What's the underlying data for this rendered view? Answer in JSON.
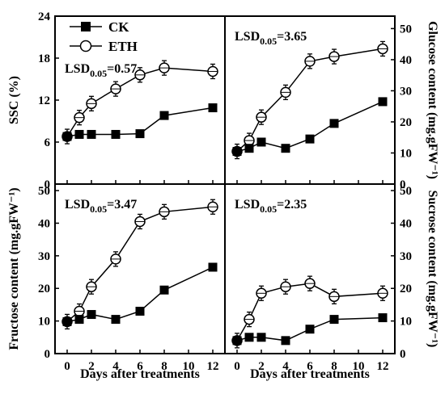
{
  "legend": [
    {
      "name": "CK",
      "marker": "filled-square"
    },
    {
      "name": "ETH",
      "marker": "open-circle"
    }
  ],
  "x_title": "Days after treatments",
  "x_ticks": [
    0,
    2,
    4,
    6,
    8,
    10,
    12
  ],
  "chart_data": [
    {
      "type": "line",
      "panel": "top-left",
      "ylabel": "SSC (%)",
      "axis_side": "left",
      "ylim": [
        0,
        24
      ],
      "yticks": [
        0,
        6,
        12,
        18,
        24
      ],
      "xlim": [
        -1,
        13
      ],
      "annotation": {
        "base": "LSD",
        "sub": "0.05",
        "value": "=0.57"
      },
      "x": [
        0,
        1,
        2,
        4,
        6,
        8,
        12
      ],
      "series": [
        {
          "name": "CK",
          "values": [
            6.8,
            7.1,
            7.1,
            7.1,
            7.2,
            9.8,
            10.9
          ]
        },
        {
          "name": "ETH",
          "values": [
            6.8,
            9.5,
            11.5,
            13.6,
            15.6,
            16.6,
            16.1
          ]
        }
      ]
    },
    {
      "type": "line",
      "panel": "top-right",
      "ylabel": "Glucose content (mg.gFW⁻¹)",
      "axis_side": "right",
      "ylim": [
        0,
        54
      ],
      "yticks": [
        0,
        10,
        20,
        30,
        40,
        50
      ],
      "xlim": [
        -1,
        13
      ],
      "annotation": {
        "base": "LSD",
        "sub": "0.05",
        "value": "=3.65"
      },
      "x": [
        0,
        1,
        2,
        4,
        6,
        8,
        12
      ],
      "series": [
        {
          "name": "CK",
          "values": [
            10.5,
            11.5,
            13.5,
            11.5,
            14.5,
            19.5,
            26.5
          ]
        },
        {
          "name": "ETH",
          "values": [
            10.5,
            14.0,
            21.5,
            29.5,
            39.5,
            41.0,
            43.5
          ]
        }
      ]
    },
    {
      "type": "line",
      "panel": "bottom-left",
      "ylabel": "Fructose content (mg.gFW⁻¹)",
      "axis_side": "left",
      "ylim": [
        0,
        52
      ],
      "yticks": [
        0,
        10,
        20,
        30,
        40,
        50
      ],
      "xlim": [
        -1,
        13
      ],
      "annotation": {
        "base": "LSD",
        "sub": "0.05",
        "value": "=3.47"
      },
      "x": [
        0,
        1,
        2,
        4,
        6,
        8,
        12
      ],
      "series": [
        {
          "name": "CK",
          "values": [
            9.8,
            10.5,
            12.0,
            10.5,
            13.0,
            19.5,
            26.5
          ]
        },
        {
          "name": "ETH",
          "values": [
            9.8,
            13.0,
            20.5,
            29.0,
            40.5,
            43.5,
            45.0
          ]
        }
      ]
    },
    {
      "type": "line",
      "panel": "bottom-right",
      "ylabel": "Sucrose content (mg.gFW⁻¹)",
      "axis_side": "right",
      "ylim": [
        0,
        52
      ],
      "yticks": [
        0,
        10,
        20,
        30,
        40,
        50
      ],
      "xlim": [
        -1,
        13
      ],
      "annotation": {
        "base": "LSD",
        "sub": "0.05",
        "value": "=2.35"
      },
      "x": [
        0,
        1,
        2,
        4,
        6,
        8,
        12
      ],
      "series": [
        {
          "name": "CK",
          "values": [
            4.0,
            5.0,
            5.0,
            4.0,
            7.5,
            10.5,
            11.0
          ]
        },
        {
          "name": "ETH",
          "values": [
            4.0,
            10.5,
            18.5,
            20.5,
            21.5,
            17.5,
            18.5
          ]
        }
      ]
    }
  ]
}
